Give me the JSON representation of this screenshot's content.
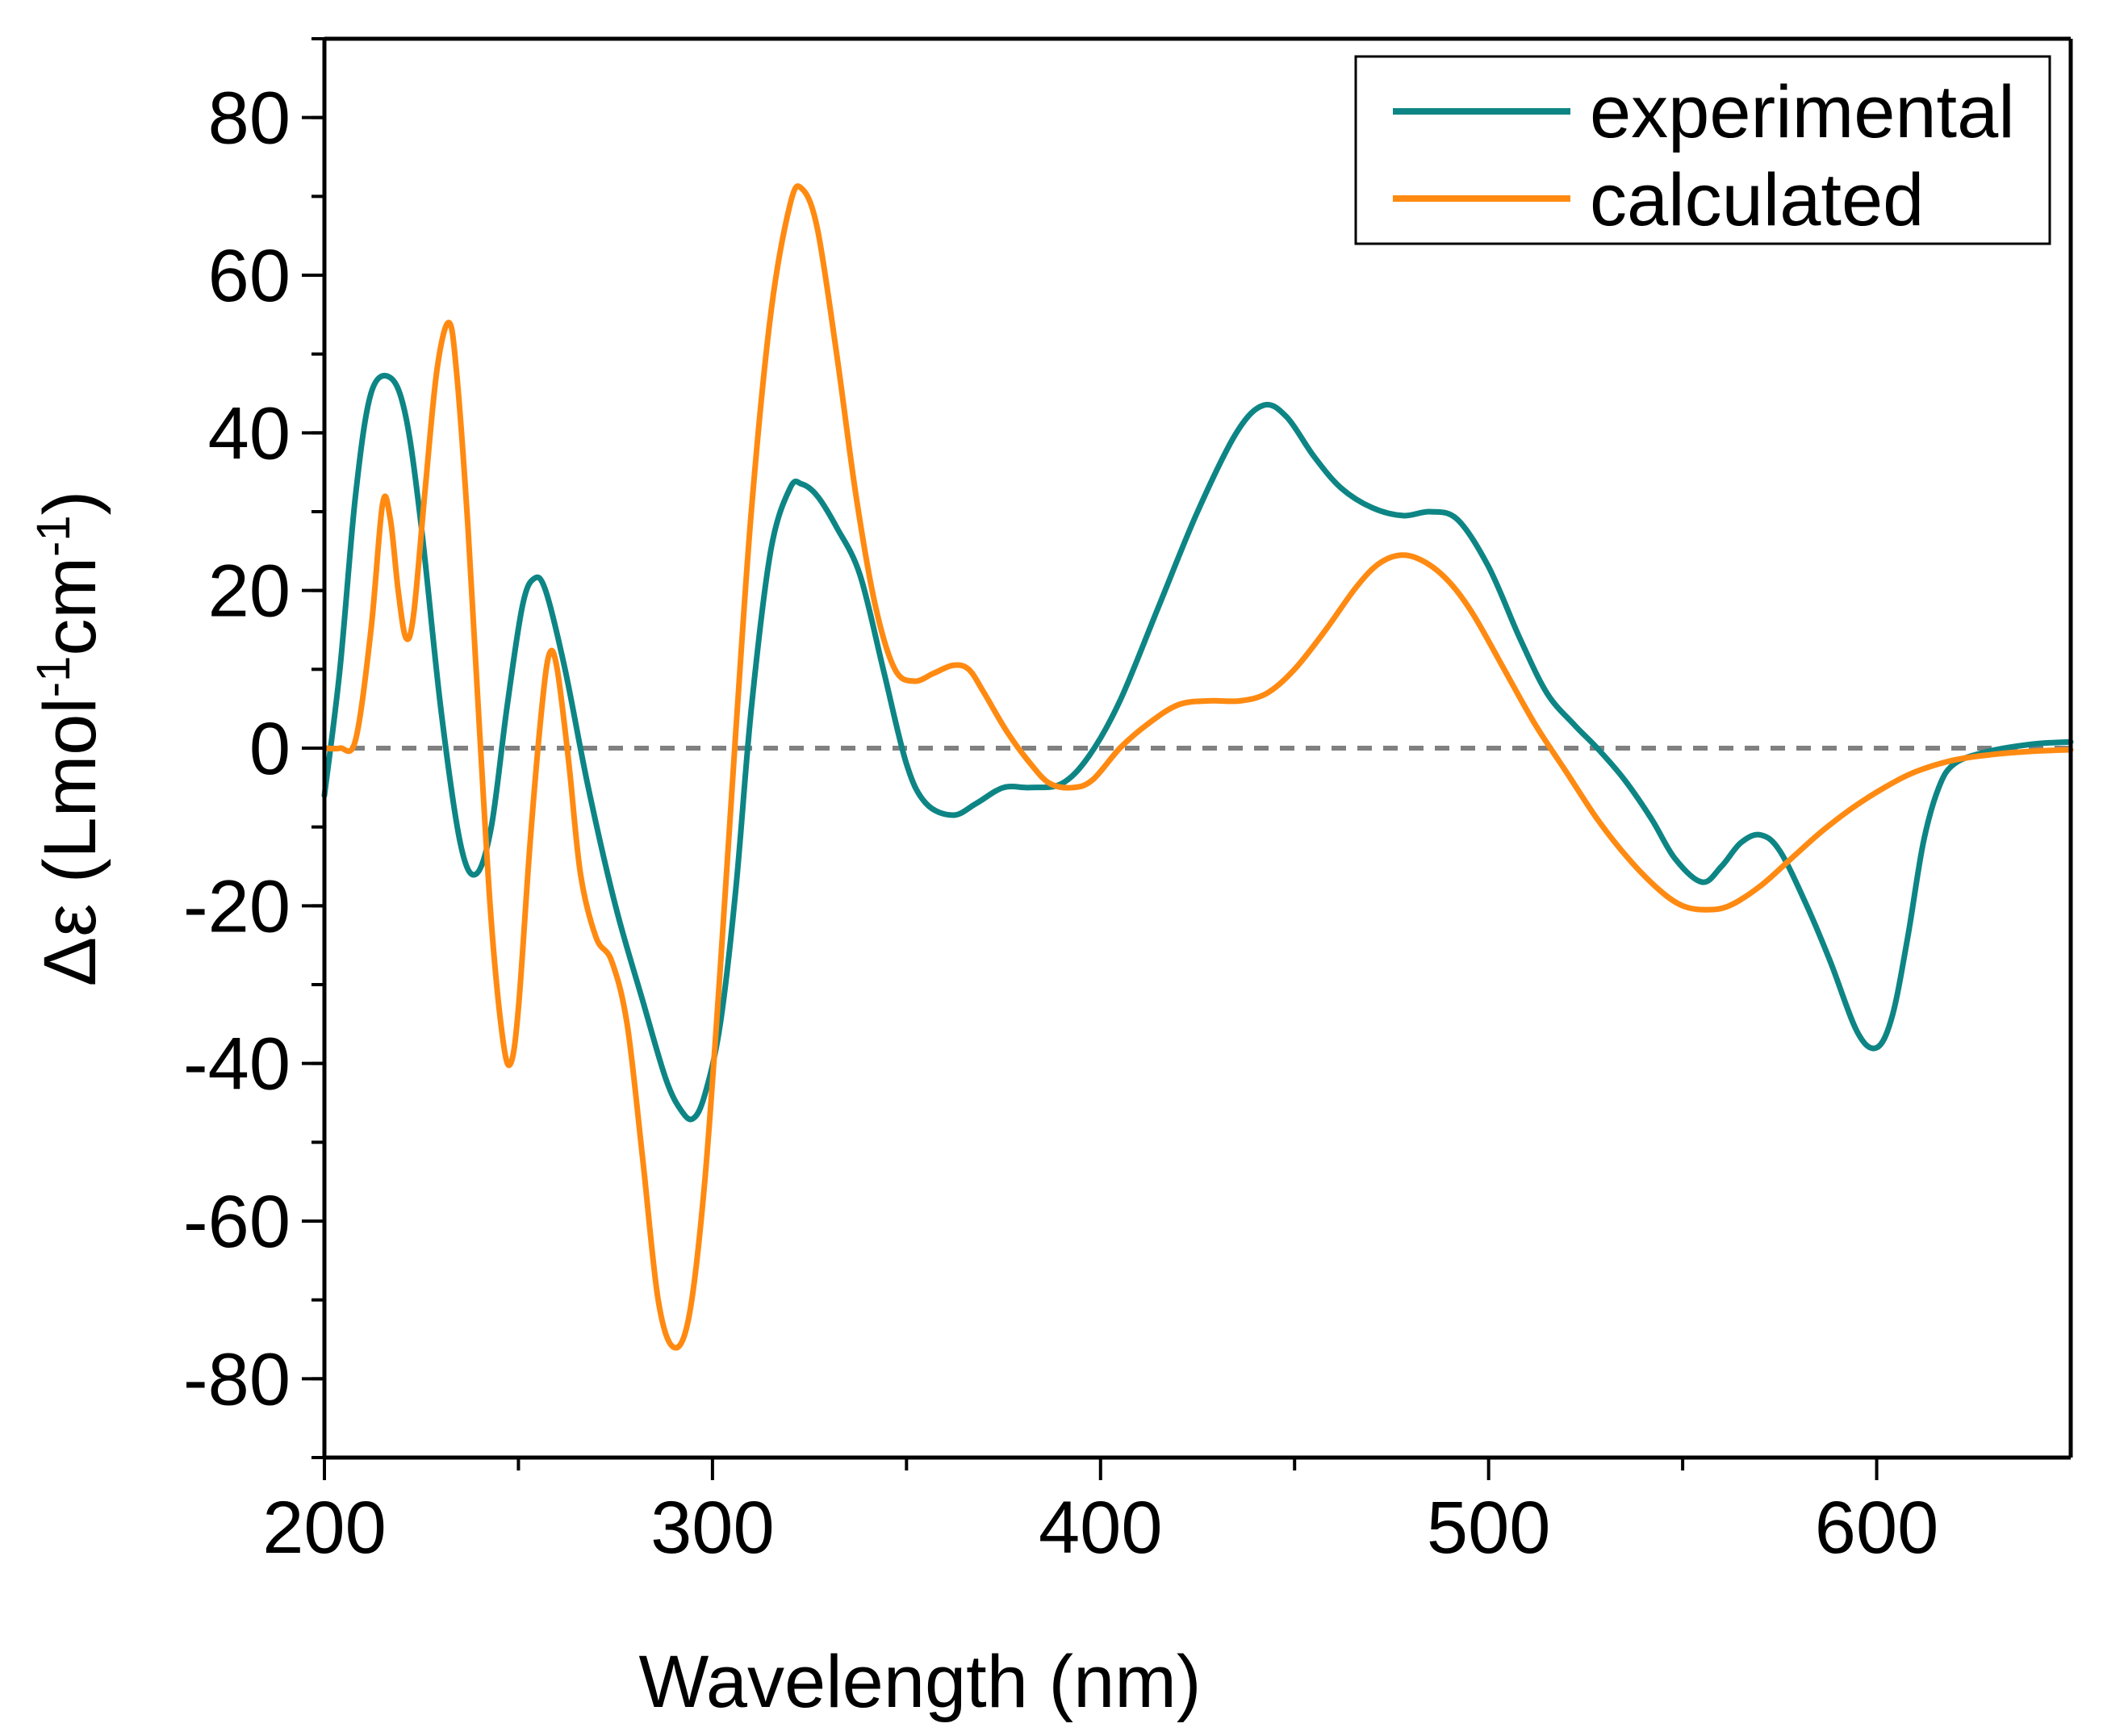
{
  "chart_data": {
    "type": "line",
    "title": "",
    "xlabel": "Wavelength (nm)",
    "ylabel_main": "Δε (Lmol",
    "ylabel_sup1": "-1",
    "ylabel_mid": "cm",
    "ylabel_sup2": "-1",
    "ylabel_end": ")",
    "xlim": [
      200,
      650
    ],
    "ylim": [
      -90,
      90
    ],
    "xticks": [
      200,
      300,
      400,
      500,
      600
    ],
    "xtick_labels": [
      "200",
      "300",
      "400",
      "500",
      "600"
    ],
    "yticks": [
      -80,
      -60,
      -40,
      -20,
      0,
      20,
      40,
      60,
      80
    ],
    "ytick_labels": [
      "-80",
      "-60",
      "-40",
      "-20",
      "0",
      "20",
      "40",
      "60",
      "80"
    ],
    "zero_line": {
      "y": 0,
      "style": "dashed",
      "color": "#808080"
    },
    "legend_position": "top-right",
    "series": [
      {
        "name": "experimental",
        "color": "#0e8585",
        "points": [
          [
            200,
            -6
          ],
          [
            204,
            10
          ],
          [
            208,
            32
          ],
          [
            212,
            45
          ],
          [
            217,
            47
          ],
          [
            221,
            42
          ],
          [
            225,
            28
          ],
          [
            230,
            5
          ],
          [
            235,
            -12
          ],
          [
            239,
            -16
          ],
          [
            243,
            -10
          ],
          [
            247,
            5
          ],
          [
            251,
            18
          ],
          [
            254,
            21.5
          ],
          [
            257,
            20
          ],
          [
            262,
            10
          ],
          [
            268,
            -5
          ],
          [
            275,
            -20
          ],
          [
            282,
            -32
          ],
          [
            288,
            -42
          ],
          [
            292,
            -46
          ],
          [
            295,
            -47
          ],
          [
            298,
            -44
          ],
          [
            302,
            -35
          ],
          [
            306,
            -18
          ],
          [
            310,
            5
          ],
          [
            315,
            25
          ],
          [
            320,
            33
          ],
          [
            323,
            33.5
          ],
          [
            327,
            32
          ],
          [
            332,
            28
          ],
          [
            338,
            22
          ],
          [
            344,
            10
          ],
          [
            350,
            -2
          ],
          [
            355,
            -7
          ],
          [
            362,
            -8.5
          ],
          [
            368,
            -7
          ],
          [
            375,
            -5
          ],
          [
            382,
            -5
          ],
          [
            390,
            -4.5
          ],
          [
            397,
            -1
          ],
          [
            405,
            6
          ],
          [
            415,
            18
          ],
          [
            425,
            30
          ],
          [
            435,
            40
          ],
          [
            442,
            43.5
          ],
          [
            448,
            42
          ],
          [
            455,
            37
          ],
          [
            462,
            33
          ],
          [
            470,
            30.5
          ],
          [
            478,
            29.5
          ],
          [
            485,
            30
          ],
          [
            492,
            29
          ],
          [
            500,
            23
          ],
          [
            508,
            14
          ],
          [
            515,
            7
          ],
          [
            522,
            3
          ],
          [
            528,
            0
          ],
          [
            535,
            -4
          ],
          [
            542,
            -9
          ],
          [
            548,
            -14
          ],
          [
            555,
            -17
          ],
          [
            560,
            -15
          ],
          [
            565,
            -12
          ],
          [
            570,
            -11
          ],
          [
            575,
            -13
          ],
          [
            582,
            -20
          ],
          [
            588,
            -27
          ],
          [
            595,
            -36
          ],
          [
            600,
            -38
          ],
          [
            604,
            -34
          ],
          [
            608,
            -24
          ],
          [
            612,
            -12
          ],
          [
            616,
            -5
          ],
          [
            620,
            -2
          ],
          [
            628,
            -0.5
          ],
          [
            640,
            0.5
          ],
          [
            650,
            0.8
          ]
        ]
      },
      {
        "name": "calculated",
        "color": "#ff8a12",
        "points": [
          [
            200,
            0
          ],
          [
            204,
            0
          ],
          [
            208,
            1
          ],
          [
            212,
            15
          ],
          [
            215,
            31
          ],
          [
            217,
            29
          ],
          [
            219,
            20
          ],
          [
            221,
            14
          ],
          [
            223,
            17
          ],
          [
            226,
            33
          ],
          [
            229,
            48
          ],
          [
            232,
            54
          ],
          [
            234,
            48
          ],
          [
            237,
            28
          ],
          [
            240,
            2
          ],
          [
            243,
            -22
          ],
          [
            246,
            -37
          ],
          [
            248,
            -40
          ],
          [
            250,
            -33
          ],
          [
            253,
            -12
          ],
          [
            256,
            5
          ],
          [
            258,
            12
          ],
          [
            260,
            10
          ],
          [
            263,
            -2
          ],
          [
            266,
            -16
          ],
          [
            270,
            -24
          ],
          [
            274,
            -27
          ],
          [
            278,
            -35
          ],
          [
            282,
            -52
          ],
          [
            286,
            -70
          ],
          [
            290,
            -76
          ],
          [
            294,
            -72
          ],
          [
            298,
            -55
          ],
          [
            302,
            -28
          ],
          [
            306,
            2
          ],
          [
            310,
            30
          ],
          [
            315,
            55
          ],
          [
            320,
            69
          ],
          [
            323,
            71
          ],
          [
            327,
            66
          ],
          [
            332,
            50
          ],
          [
            337,
            32
          ],
          [
            342,
            18
          ],
          [
            347,
            10
          ],
          [
            352,
            8.5
          ],
          [
            357,
            9.5
          ],
          [
            362,
            10.5
          ],
          [
            366,
            10
          ],
          [
            370,
            7
          ],
          [
            376,
            2
          ],
          [
            382,
            -2
          ],
          [
            387,
            -4.5
          ],
          [
            393,
            -5
          ],
          [
            398,
            -4
          ],
          [
            405,
            0
          ],
          [
            412,
            3
          ],
          [
            420,
            5.5
          ],
          [
            428,
            6
          ],
          [
            436,
            6
          ],
          [
            443,
            7
          ],
          [
            450,
            10
          ],
          [
            458,
            15
          ],
          [
            466,
            20.5
          ],
          [
            472,
            23.5
          ],
          [
            478,
            24.5
          ],
          [
            484,
            23.5
          ],
          [
            490,
            21
          ],
          [
            496,
            17
          ],
          [
            504,
            10
          ],
          [
            512,
            3
          ],
          [
            520,
            -3
          ],
          [
            528,
            -9
          ],
          [
            536,
            -14
          ],
          [
            544,
            -18
          ],
          [
            550,
            -20
          ],
          [
            556,
            -20.5
          ],
          [
            562,
            -20
          ],
          [
            570,
            -17.5
          ],
          [
            578,
            -14
          ],
          [
            586,
            -10.5
          ],
          [
            594,
            -7.5
          ],
          [
            602,
            -5
          ],
          [
            610,
            -3
          ],
          [
            620,
            -1.5
          ],
          [
            630,
            -0.8
          ],
          [
            640,
            -0.4
          ],
          [
            650,
            -0.2
          ]
        ]
      }
    ]
  }
}
